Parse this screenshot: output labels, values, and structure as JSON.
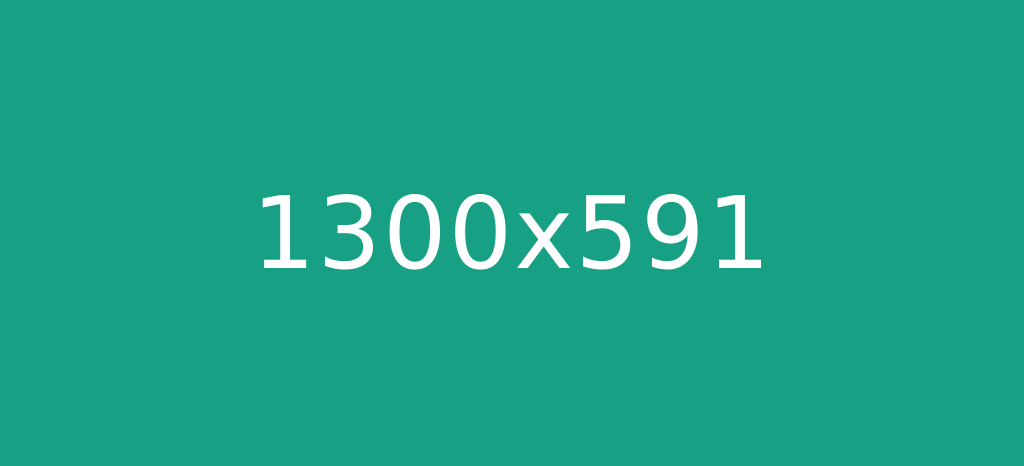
{
  "placeholder": {
    "label": "1300x591",
    "background_color": "#18a085",
    "text_color": "#ffffff"
  }
}
